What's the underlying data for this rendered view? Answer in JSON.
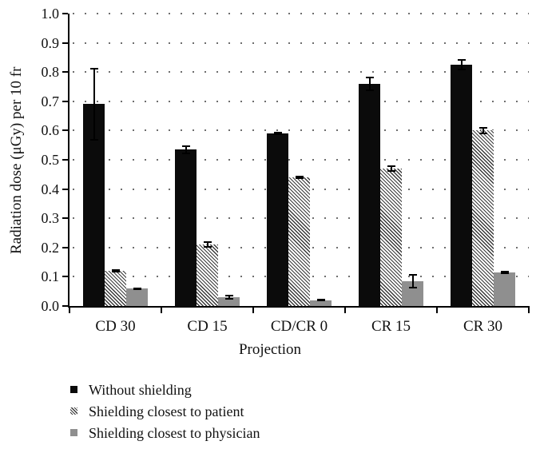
{
  "figure": {
    "background": "#ffffff",
    "text_color": "#111111",
    "axis_color": "#000000",
    "gridline_color": "#6e6e6e"
  },
  "chart_data": {
    "type": "bar",
    "title": "",
    "xlabel": "Projection",
    "ylabel": "Radiation dose (μGy) per 10 fr",
    "ylim": [
      0.0,
      1.0
    ],
    "ytick_step": 0.1,
    "grid": "dotted-horizontal",
    "legend_position": "bottom-left",
    "error_bars": true,
    "categories": [
      "CD 30",
      "CD 15",
      "CD/CR 0",
      "CR 15",
      "CR 30"
    ],
    "series": [
      {
        "name": "Without shielding",
        "style": "solid-black",
        "color": "#0b0b0b",
        "values": [
          0.69,
          0.535,
          0.59,
          0.76,
          0.825
        ],
        "errors": [
          0.125,
          0.015,
          0.006,
          0.025,
          0.02
        ]
      },
      {
        "name": "Shielding closest to patient",
        "style": "diagonal-hatch",
        "color": "#ffffff",
        "hatch_color": "#3a3a3a",
        "values": [
          0.12,
          0.21,
          0.44,
          0.47,
          0.6
        ],
        "errors": [
          0.005,
          0.01,
          0.005,
          0.01,
          0.012
        ]
      },
      {
        "name": "Shielding closest to physician",
        "style": "solid-gray",
        "color": "#8f8f8f",
        "values": [
          0.06,
          0.03,
          0.02,
          0.085,
          0.115
        ],
        "errors": [
          0.004,
          0.008,
          0.004,
          0.025,
          0.005
        ]
      }
    ]
  }
}
